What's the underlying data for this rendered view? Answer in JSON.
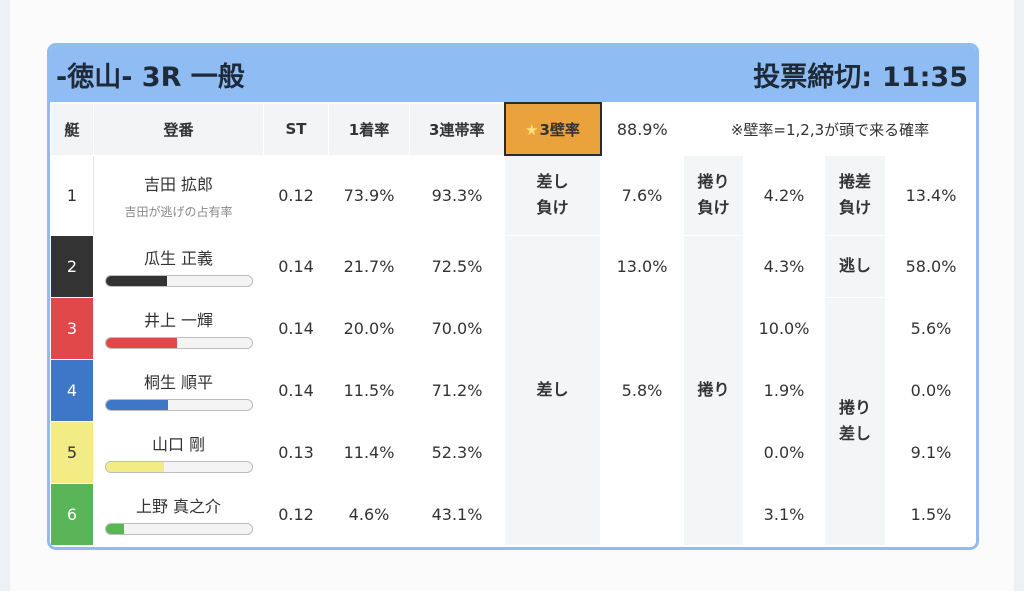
{
  "header": {
    "title": "-徳山- 3R 一般",
    "deadline_label": "投票締切:",
    "deadline_time": "11:35"
  },
  "columns": {
    "boat": "艇",
    "name": "登番",
    "st": "ST",
    "win": "1着率",
    "top3": "3連帯率",
    "wall_star": "★",
    "wall": "3壁率",
    "wall_value": "88.9%",
    "note": "※壁率=1,2,3が頭で来る確率"
  },
  "row1": {
    "boat": "1",
    "name": "吉田 拡郎",
    "sub": "吉田が逃げの占有率",
    "st": "0.12",
    "win": "73.9%",
    "top3": "93.3%",
    "c1_label_a": "差し",
    "c1_label_b": "負け",
    "c1_value": "7.6%",
    "c2_label_a": "捲り",
    "c2_label_b": "負け",
    "c2_value": "4.2%",
    "c3_label_a": "捲差",
    "c3_label_b": "負け",
    "c3_value": "13.4%"
  },
  "rows": [
    {
      "boat": "2",
      "name": "瓜生 正義",
      "bar": 0.42,
      "bar_color": "#333333",
      "st": "0.14",
      "win": "21.7%",
      "top3": "72.5%",
      "sashi": "13.0%",
      "makuri": "4.3%",
      "right": "58.0%"
    },
    {
      "boat": "3",
      "name": "井上 一輝",
      "bar": 0.49,
      "bar_color": "#e0484a",
      "st": "0.14",
      "win": "20.0%",
      "top3": "70.0%",
      "sashi": "",
      "makuri": "10.0%",
      "right": "5.6%"
    },
    {
      "boat": "4",
      "name": "桐生 順平",
      "bar": 0.43,
      "bar_color": "#3f77c8",
      "st": "0.14",
      "win": "11.5%",
      "top3": "71.2%",
      "sashi": "5.8%",
      "makuri": "1.9%",
      "right": "0.0%"
    },
    {
      "boat": "5",
      "name": "山口 剛",
      "bar": 0.4,
      "bar_color": "#f3ec84",
      "st": "0.13",
      "win": "11.4%",
      "top3": "52.3%",
      "sashi": "",
      "makuri": "0.0%",
      "right": "9.1%"
    },
    {
      "boat": "6",
      "name": "上野 真之介",
      "bar": 0.13,
      "bar_color": "#5ab458",
      "st": "0.12",
      "win": "4.6%",
      "top3": "43.1%",
      "sashi": "",
      "makuri": "3.1%",
      "right": "1.5%"
    }
  ],
  "labels": {
    "sashi": "差し",
    "makuri": "捲り",
    "nigashi": "逃し",
    "makuri_sashi_a": "捲り",
    "makuri_sashi_b": "差し"
  }
}
